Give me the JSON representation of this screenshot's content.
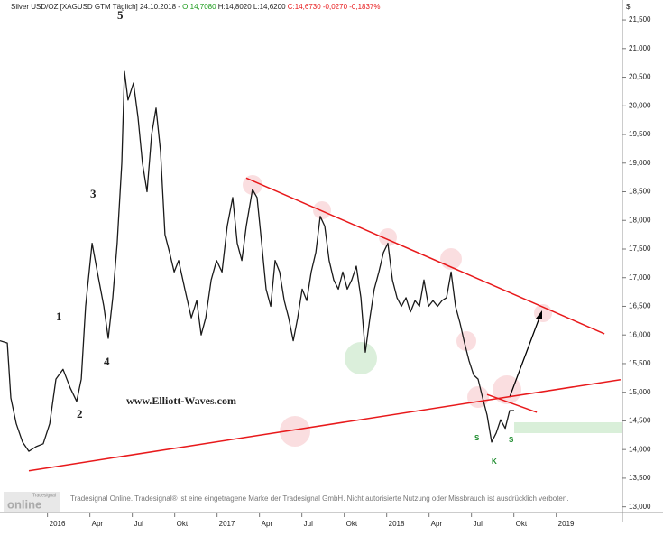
{
  "chart_data": {
    "type": "line",
    "title": "Silver USD/OZ [XAGUSD GTM  Täglich]",
    "date": "24.10.2018 -",
    "quote_open": "O:14,7080",
    "quote_high_low": "H:14,8020 L:14,6200",
    "quote_close": "C:14,6730 -0,0270 -0,1837%",
    "y_unit": "$",
    "watermark": "www.Elliott-Waves.com",
    "wave_labels": [
      "1",
      "2",
      "3",
      "4",
      "5"
    ],
    "pattern_labels": [
      "S",
      "S",
      "K"
    ],
    "footer": "Tradesignal Online. Tradesignal® ist eine eingetragene Marke der Tradesignal GmbH. Nicht autorisierte Nutzung oder Missbrauch ist ausdrücklich verboten.",
    "logo_top": "Tradesignal",
    "logo_bottom": "online",
    "xlim": [
      2015.72,
      2019.39
    ],
    "ylim": [
      12.9,
      21.69
    ],
    "xticks": [
      2016,
      {
        "value": 2016.25,
        "label": "Apr"
      },
      {
        "value": 2016.5,
        "label": "Jul"
      },
      {
        "value": 2016.75,
        "label": "Okt"
      },
      2017,
      {
        "value": 2017.25,
        "label": "Apr"
      },
      {
        "value": 2017.5,
        "label": "Jul"
      },
      {
        "value": 2017.75,
        "label": "Okt"
      },
      2018,
      {
        "value": 2018.25,
        "label": "Apr"
      },
      {
        "value": 2018.5,
        "label": "Jul"
      },
      {
        "value": 2018.75,
        "label": "Okt"
      },
      2019
    ],
    "yticks": [
      {
        "value": 13,
        "label": "13,000"
      },
      {
        "value": 13.5,
        "label": "13,500"
      },
      {
        "value": 14,
        "label": "14,000"
      },
      {
        "value": 14.5,
        "label": "14,500"
      },
      {
        "value": 15,
        "label": "15,000"
      },
      {
        "value": 15.5,
        "label": "15,500"
      },
      {
        "value": 16,
        "label": "16,000"
      },
      {
        "value": 16.5,
        "label": "16,500"
      },
      {
        "value": 17,
        "label": "17,000"
      },
      {
        "value": 17.5,
        "label": "17,500"
      },
      {
        "value": 18,
        "label": "18,000"
      },
      {
        "value": 18.5,
        "label": "18,500"
      },
      {
        "value": 19,
        "label": "19,000"
      },
      {
        "value": 19.5,
        "label": "19,500"
      },
      {
        "value": 20,
        "label": "20,000"
      },
      {
        "value": 20.5,
        "label": "20,500"
      },
      {
        "value": 21,
        "label": "21,000"
      },
      {
        "value": 21.5,
        "label": "21,500"
      }
    ],
    "series": [
      {
        "color": "#1a1a1a",
        "x": [
          2015.72,
          2015.763,
          2015.784,
          2015.816,
          2015.853,
          2015.89,
          2015.933,
          2015.975,
          2016.013,
          2016.05,
          2016.092,
          2016.135,
          2016.172,
          2016.199,
          2016.225,
          2016.263,
          2016.294,
          2016.332,
          2016.358,
          2016.385,
          2016.411,
          2016.438,
          2016.454,
          2016.475,
          2016.507,
          2016.534,
          2016.56,
          2016.587,
          2016.614,
          2016.64,
          2016.667,
          2016.693,
          2016.72,
          2016.747,
          2016.773,
          2016.81,
          2016.848,
          2016.88,
          2016.906,
          2016.933,
          2016.965,
          2016.997,
          2017.029,
          2017.06,
          2017.092,
          2017.119,
          2017.146,
          2017.172,
          2017.209,
          2017.236,
          2017.263,
          2017.289,
          2017.316,
          2017.342,
          2017.369,
          2017.396,
          2017.422,
          2017.449,
          2017.475,
          2017.502,
          2017.529,
          2017.555,
          2017.582,
          2017.608,
          2017.635,
          2017.661,
          2017.688,
          2017.715,
          2017.741,
          2017.768,
          2017.794,
          2017.821,
          2017.848,
          2017.874,
          2017.901,
          2017.927,
          2017.954,
          2017.981,
          2018.007,
          2018.034,
          2018.061,
          2018.087,
          2018.114,
          2018.14,
          2018.167,
          2018.193,
          2018.22,
          2018.247,
          2018.273,
          2018.3,
          2018.326,
          2018.353,
          2018.38,
          2018.406,
          2018.433,
          2018.459,
          2018.486,
          2018.513,
          2018.539,
          2018.566,
          2018.592,
          2018.619,
          2018.646,
          2018.672,
          2018.699,
          2018.725,
          2018.752
        ],
        "values": [
          15.9,
          15.86,
          14.9,
          14.45,
          14.13,
          13.97,
          14.05,
          14.1,
          14.45,
          15.23,
          15.4,
          15.07,
          14.84,
          15.23,
          16.5,
          17.6,
          17.1,
          16.5,
          15.94,
          16.65,
          17.6,
          19.0,
          20.6,
          20.1,
          20.4,
          19.8,
          19.0,
          18.5,
          19.5,
          19.96,
          19.2,
          17.75,
          17.44,
          17.1,
          17.3,
          16.8,
          16.3,
          16.6,
          16.0,
          16.3,
          16.96,
          17.3,
          17.1,
          17.9,
          18.4,
          17.6,
          17.3,
          17.9,
          18.54,
          18.4,
          17.6,
          16.8,
          16.5,
          17.3,
          17.1,
          16.6,
          16.3,
          15.9,
          16.3,
          16.8,
          16.6,
          17.1,
          17.44,
          18.07,
          17.9,
          17.3,
          16.96,
          16.8,
          17.1,
          16.8,
          16.96,
          17.2,
          16.65,
          15.7,
          16.3,
          16.8,
          17.1,
          17.44,
          17.6,
          16.96,
          16.65,
          16.5,
          16.65,
          16.4,
          16.6,
          16.5,
          16.96,
          16.5,
          16.6,
          16.5,
          16.6,
          16.65,
          17.1,
          16.5,
          16.2,
          15.86,
          15.55,
          15.3,
          15.23,
          14.9,
          14.6,
          14.13,
          14.29,
          14.52,
          14.37,
          14.68,
          14.68
        ]
      }
    ],
    "trendlines": [
      {
        "color": "#e8191b",
        "x": [
          2017.172,
          2019.284
        ],
        "values": [
          18.74,
          16.02
        ]
      },
      {
        "color": "#e8191b",
        "x": [
          2015.89,
          2019.379
        ],
        "values": [
          13.63,
          15.22
        ]
      },
      {
        "color": "#e8191b",
        "x": [
          2018.592,
          2018.885
        ],
        "values": [
          14.96,
          14.65
        ]
      }
    ]
  }
}
